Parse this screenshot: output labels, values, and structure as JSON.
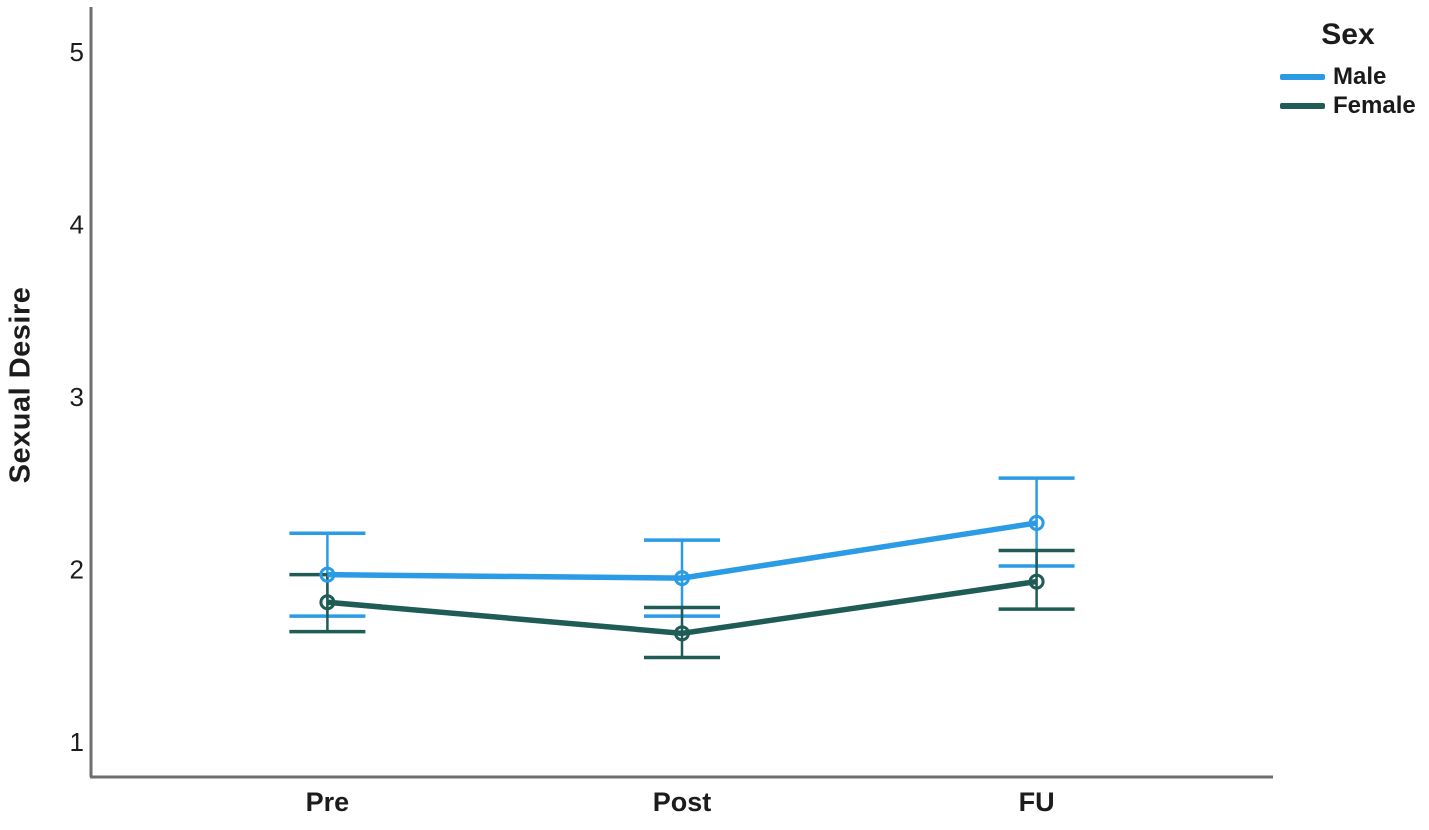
{
  "page": {
    "background": "#ffffff"
  },
  "chart_data": {
    "type": "line",
    "title": "",
    "xlabel": "",
    "ylabel": "Sexual Desire",
    "categories": [
      "Pre",
      "Post",
      "FU"
    ],
    "yticks": [
      1,
      2,
      3,
      4,
      5
    ],
    "ylim": [
      0.8,
      5.26
    ],
    "grid": false,
    "error_bars": true,
    "marker": "open-circle",
    "axis_color": "#6e6e6e",
    "legend_title": "Sex",
    "legend_position": "top-right",
    "series": [
      {
        "name": "Male",
        "color": "#2B9BE5",
        "values": [
          1.97,
          1.95,
          2.27
        ],
        "ci_low": [
          1.73,
          1.73,
          2.02
        ],
        "ci_high": [
          2.21,
          2.17,
          2.53
        ]
      },
      {
        "name": "Female",
        "color": "#1E5C55",
        "values": [
          1.81,
          1.63,
          1.93
        ],
        "ci_low": [
          1.64,
          1.49,
          1.77
        ],
        "ci_high": [
          1.97,
          1.78,
          2.11
        ]
      }
    ]
  }
}
